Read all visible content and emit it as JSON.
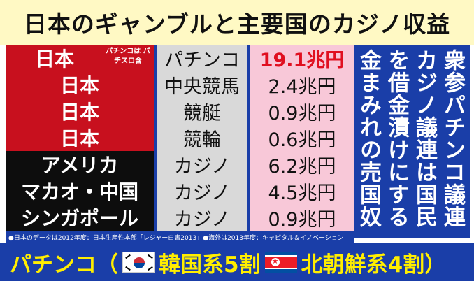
{
  "title": "日本のギャンブルと主要国のカジノ収益",
  "rows": [
    {
      "country": "日本",
      "note": "パチンコは パチスロ含",
      "type": "パチンコ",
      "value": "19.1兆円"
    },
    {
      "country": "日本",
      "type": "中央競馬",
      "value": "2.4兆円"
    },
    {
      "country": "日本",
      "type": "競艇",
      "value": "0.9兆円"
    },
    {
      "country": "日本",
      "type": "競輪",
      "value": "0.6兆円"
    },
    {
      "country": "アメリカ",
      "type": "カジノ",
      "value": "6.2兆円"
    },
    {
      "country": "マカオ・中国",
      "type": "カジノ",
      "value": "4.5兆円"
    },
    {
      "country": "シンガポール",
      "type": "カジノ",
      "value": "0.9兆円"
    }
  ],
  "side_text": {
    "col1": "衆参パチンコ議連",
    "col2": "カジノ議連は国民",
    "col3": "を借金漬けにする",
    "col4": "金まみれの売国奴"
  },
  "footnote": "●日本のデータは2012年度：日本生産性本部「レジャー白書2013」●海外は2013年度：キャピタル＆イノベーション",
  "bottom": {
    "part1": "パチンコ（",
    "part2": "韓国系5割",
    "part3": "北朝鮮系4割）"
  },
  "colors": {
    "title_bg": "#fff9c4",
    "japan_red": "#c8101e",
    "foreign_black": "#0d0d0d",
    "panel_blue": "#1a3ea8",
    "value_pink": "#f8c8d8",
    "highlight_red": "#e01020",
    "bottom_yellow": "#ffee00"
  }
}
